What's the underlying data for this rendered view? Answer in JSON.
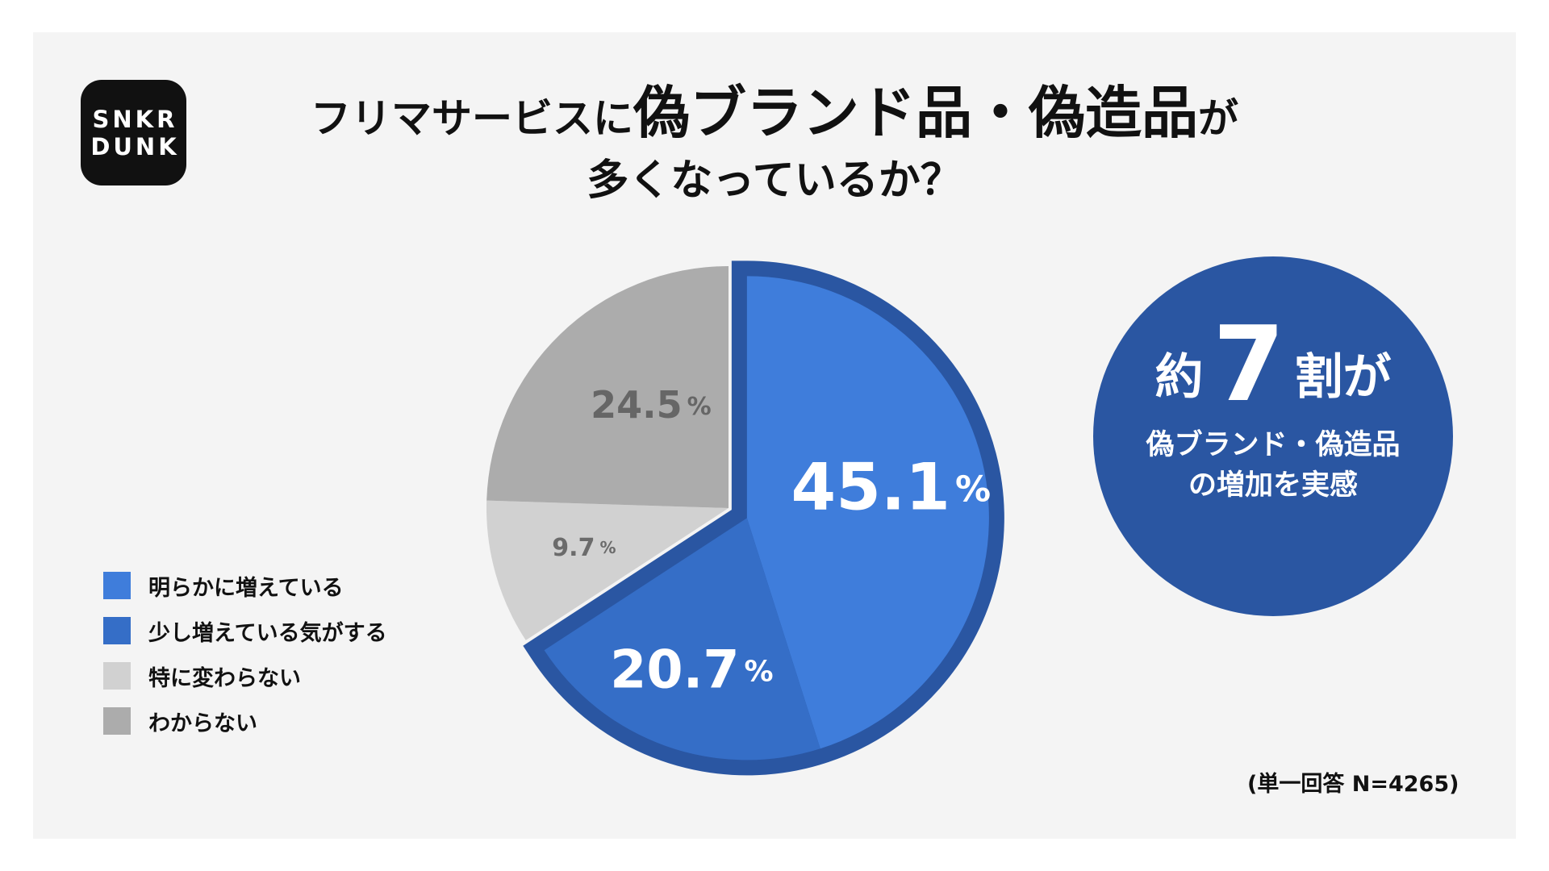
{
  "logo": {
    "line1": "SNKR",
    "line2": "DUNK"
  },
  "title": {
    "line1_a": "フリマサービスに",
    "line1_b": "偽ブランド品・偽造品",
    "line1_c": "が",
    "line2": "多くなっているか？"
  },
  "badge": {
    "prefix": "約",
    "number": "7",
    "suffix": "割が",
    "line1": "偽ブランド・偽造品",
    "line2": "の増加を実感"
  },
  "note": "(単一回答 N=4265)",
  "colors": {
    "panel": "#f4f4f4",
    "badge": "#2a56a2",
    "highlight_outline": "#2a56a2"
  },
  "chart_data": {
    "type": "pie",
    "start": "12 o'clock, clockwise",
    "highlighted": [
      "明らかに増えている",
      "少し増えている気がする"
    ],
    "slices": [
      {
        "label": "明らかに増えている",
        "value": 45.1,
        "display": "45.1",
        "unit": "%",
        "color": "#3f7ddb",
        "label_color": "#ffffff"
      },
      {
        "label": "少し増えている気がする",
        "value": 20.7,
        "display": "20.7",
        "unit": "%",
        "color": "#356ec7",
        "label_color": "#ffffff"
      },
      {
        "label": "特に変わらない",
        "value": 9.7,
        "display": "9.7",
        "unit": "%",
        "color": "#d1d1d1",
        "label_color": "#6b6b6b"
      },
      {
        "label": "わからない",
        "value": 24.5,
        "display": "24.5",
        "unit": "%",
        "color": "#acacac",
        "label_color": "#666666"
      }
    ]
  }
}
